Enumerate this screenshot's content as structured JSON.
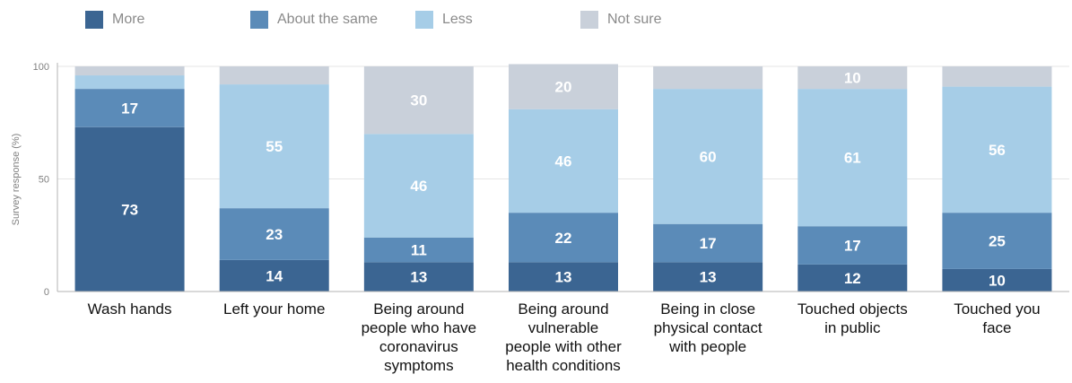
{
  "colors": {
    "more": "#3b6592",
    "about_same": "#5b8bb8",
    "less": "#a6cde7",
    "not_sure": "#c9d0da",
    "grid": "#e6e6e6",
    "axis": "#b3b3b3"
  },
  "legend": {
    "items": [
      {
        "label": "More",
        "color": "#3b6592"
      },
      {
        "label": "About the same",
        "color": "#5b8bb8"
      },
      {
        "label": "Less",
        "color": "#a6cde7"
      },
      {
        "label": "Not sure",
        "color": "#c9d0da"
      }
    ]
  },
  "chart_data": {
    "type": "bar",
    "stacked": true,
    "ylabel": "Survey response (%)",
    "ylim": [
      0,
      100
    ],
    "yticks": [
      0,
      50,
      100
    ],
    "grid": true,
    "legend_position": "top",
    "categories": [
      [
        "Wash hands"
      ],
      [
        "Left your home"
      ],
      [
        "Being around",
        "people who have",
        "coronavirus",
        "symptoms"
      ],
      [
        "Being around",
        "vulnerable",
        "people with other",
        "health conditions"
      ],
      [
        "Being in close",
        "physical contact",
        "with people"
      ],
      [
        "Touched objects",
        "in public"
      ],
      [
        "Touched you",
        "face"
      ]
    ],
    "series": [
      {
        "name": "More",
        "values": [
          73,
          14,
          13,
          13,
          13,
          12,
          10
        ],
        "labels": [
          "73",
          "14",
          "13",
          "13",
          "13",
          "12",
          "10"
        ]
      },
      {
        "name": "About the same",
        "values": [
          17,
          23,
          11,
          22,
          17,
          17,
          25
        ],
        "labels": [
          "17",
          "23",
          "11",
          "22",
          "17",
          "17",
          "25"
        ]
      },
      {
        "name": "Less",
        "values": [
          6,
          55,
          46,
          46,
          60,
          61,
          56
        ],
        "labels": [
          "",
          "55",
          "46",
          "46",
          "60",
          "61",
          "56"
        ]
      },
      {
        "name": "Not sure",
        "values": [
          4,
          8,
          30,
          20,
          10,
          10,
          9
        ],
        "labels": [
          "",
          "",
          "30",
          "20",
          "",
          "10",
          ""
        ]
      }
    ]
  }
}
